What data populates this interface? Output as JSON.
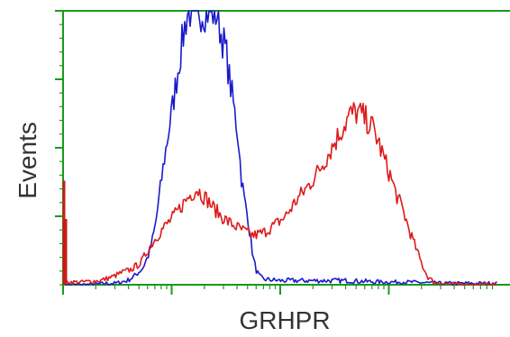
{
  "chart_data": {
    "type": "line",
    "title": "",
    "xlabel": "GRHPR",
    "ylabel": "Events",
    "xscale": "log",
    "xlim": [
      1,
      10000
    ],
    "ylim": [
      0,
      100
    ],
    "grid": false,
    "legend": "none",
    "axis_color": "#1a9a1a",
    "series": [
      {
        "color": "#1a1acc",
        "points": [
          [
            1,
            0
          ],
          [
            1.8,
            0
          ],
          [
            2.5,
            0.5
          ],
          [
            3,
            0.5
          ],
          [
            3.9,
            1.5
          ],
          [
            4.5,
            3
          ],
          [
            5.4,
            6
          ],
          [
            6.3,
            12
          ],
          [
            7.1,
            22
          ],
          [
            7.8,
            34
          ],
          [
            8.5,
            45
          ],
          [
            9.3,
            55
          ],
          [
            10.2,
            65
          ],
          [
            11.1,
            75
          ],
          [
            12.1,
            85
          ],
          [
            13.3,
            95
          ],
          [
            14.1,
            100
          ],
          [
            18,
            100
          ],
          [
            22,
            100
          ],
          [
            26.2,
            99
          ],
          [
            28.4,
            92
          ],
          [
            31.8,
            85
          ],
          [
            33.8,
            76
          ],
          [
            36.4,
            68
          ],
          [
            39,
            60
          ],
          [
            41.5,
            52
          ],
          [
            43.6,
            40
          ],
          [
            46.8,
            31
          ],
          [
            50.6,
            24
          ],
          [
            54,
            15
          ],
          [
            57,
            9
          ],
          [
            60.5,
            5
          ],
          [
            64.5,
            3
          ],
          [
            70,
            2
          ],
          [
            100,
            1.5
          ],
          [
            200,
            1.5
          ],
          [
            400,
            1.5
          ],
          [
            800,
            1
          ],
          [
            1500,
            1
          ],
          [
            3000,
            0.5
          ],
          [
            10000,
            0.5
          ]
        ]
      },
      {
        "color": "#dd1a1a",
        "points": [
          [
            1,
            1
          ],
          [
            1.5,
            1
          ],
          [
            2.2,
            1.5
          ],
          [
            2.9,
            3
          ],
          [
            3.5,
            4.5
          ],
          [
            4.2,
            5.5
          ],
          [
            5.2,
            8
          ],
          [
            6.3,
            14
          ],
          [
            8.1,
            20
          ],
          [
            10.5,
            25
          ],
          [
            13,
            30
          ],
          [
            15,
            33
          ],
          [
            17.1,
            35
          ],
          [
            19,
            33
          ],
          [
            21.3,
            31
          ],
          [
            24.3,
            28
          ],
          [
            28.7,
            25
          ],
          [
            33.1,
            23
          ],
          [
            40,
            21
          ],
          [
            49.5,
            19
          ],
          [
            57,
            18
          ],
          [
            70,
            19
          ],
          [
            90.6,
            22
          ],
          [
            112,
            25
          ],
          [
            142,
            31
          ],
          [
            181,
            36
          ],
          [
            229,
            42
          ],
          [
            297,
            50
          ],
          [
            384,
            58
          ],
          [
            439,
            62
          ],
          [
            497,
            63
          ],
          [
            561,
            62
          ],
          [
            628,
            60
          ],
          [
            718,
            57
          ],
          [
            805,
            52
          ],
          [
            902,
            46
          ],
          [
            1029,
            40
          ],
          [
            1170,
            33
          ],
          [
            1357,
            27
          ],
          [
            1543,
            20
          ],
          [
            1755,
            14
          ],
          [
            1996,
            8
          ],
          [
            2270,
            3
          ],
          [
            2586,
            1
          ],
          [
            3000,
            0.5
          ],
          [
            5000,
            0
          ],
          [
            10000,
            0
          ]
        ]
      },
      {
        "color": "#cc1a1a",
        "points": [
          [
            1.02,
            0
          ],
          [
            1.02,
            38
          ]
        ]
      },
      {
        "color": "#cc1a1a",
        "points": [
          [
            1.06,
            0
          ],
          [
            1.06,
            24
          ]
        ]
      }
    ]
  }
}
